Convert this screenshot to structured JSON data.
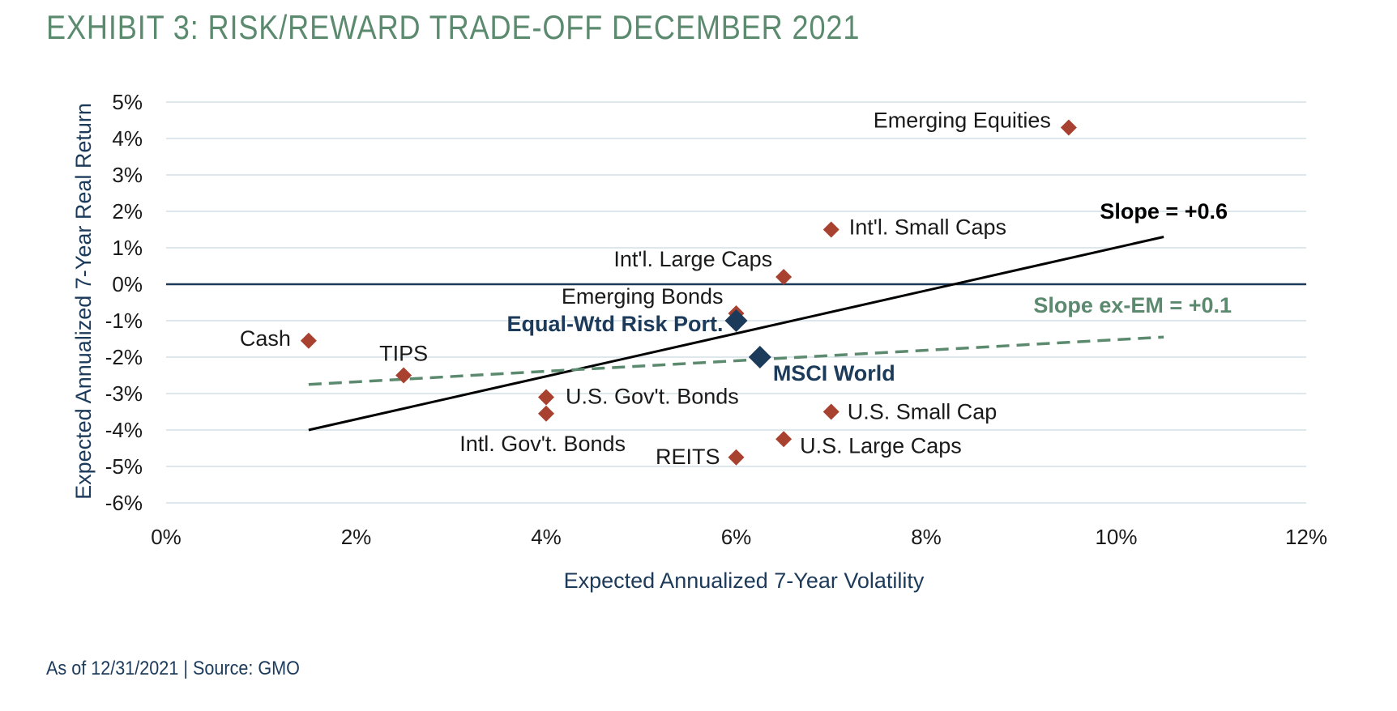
{
  "page": {
    "title": "EXHIBIT 3: RISK/REWARD TRADE-OFF DECEMBER 2021",
    "footer": "As of 12/31/2021 | Source: GMO"
  },
  "chart_data": {
    "type": "scatter",
    "title": "EXHIBIT 3: RISK/REWARD TRADE-OFF DECEMBER 2021",
    "xlabel": "Expected Annualized 7-Year Volatility",
    "ylabel": "Expected Annualized 7-Year Real Return",
    "xlim": [
      0,
      12
    ],
    "ylim": [
      -6,
      5
    ],
    "x_ticks": [
      0,
      2,
      4,
      6,
      8,
      10,
      12
    ],
    "y_ticks": [
      5,
      4,
      3,
      2,
      1,
      0,
      -1,
      -2,
      -3,
      -4,
      -5,
      -6
    ],
    "x_tick_labels": [
      "0%",
      "2%",
      "4%",
      "6%",
      "8%",
      "10%",
      "12%"
    ],
    "y_tick_labels": [
      "5%",
      "4%",
      "3%",
      "2%",
      "1%",
      "0%",
      "-1%",
      "-2%",
      "-3%",
      "-4%",
      "-5%",
      "-6%"
    ],
    "grid": true,
    "colors": {
      "asset": "#a8412f",
      "portfolio": "#1c3a5a",
      "slope": "#000000",
      "slope_ex_em": "#5b8a6f",
      "grid": "#d4dfe6",
      "axis_text": "#1c3a5a"
    },
    "points": [
      {
        "label": "Emerging Equities",
        "x": 9.5,
        "y": 4.3,
        "kind": "asset"
      },
      {
        "label": "Int'l. Small Caps",
        "x": 7.0,
        "y": 1.5,
        "kind": "asset"
      },
      {
        "label": "Int'l. Large Caps",
        "x": 6.5,
        "y": 0.2,
        "kind": "asset"
      },
      {
        "label": "Emerging Bonds",
        "x": 6.0,
        "y": -0.8,
        "kind": "asset"
      },
      {
        "label": "Cash",
        "x": 1.5,
        "y": -1.55,
        "kind": "asset"
      },
      {
        "label": "TIPS",
        "x": 2.5,
        "y": -2.5,
        "kind": "asset"
      },
      {
        "label": "U.S. Gov't. Bonds",
        "x": 4.0,
        "y": -3.1,
        "kind": "asset"
      },
      {
        "label": "Intl. Gov't. Bonds",
        "x": 4.0,
        "y": -3.55,
        "kind": "asset"
      },
      {
        "label": "U.S. Small Cap",
        "x": 7.0,
        "y": -3.5,
        "kind": "asset"
      },
      {
        "label": "U.S. Large Caps",
        "x": 6.5,
        "y": -4.25,
        "kind": "asset"
      },
      {
        "label": "REITS",
        "x": 6.0,
        "y": -4.75,
        "kind": "asset"
      },
      {
        "label": "Equal-Wtd Risk Port.",
        "x": 6.0,
        "y": -1.0,
        "kind": "portfolio"
      },
      {
        "label": "MSCI World",
        "x": 6.25,
        "y": -2.0,
        "kind": "portfolio"
      }
    ],
    "lines": [
      {
        "name": "Slope = +0.6",
        "x": [
          1.5,
          10.5
        ],
        "y": [
          -4.0,
          1.3
        ],
        "style": "solid"
      },
      {
        "name": "Slope ex-EM = +0.1",
        "x": [
          1.5,
          10.5
        ],
        "y": [
          -2.75,
          -1.45
        ],
        "style": "dashed"
      }
    ]
  }
}
